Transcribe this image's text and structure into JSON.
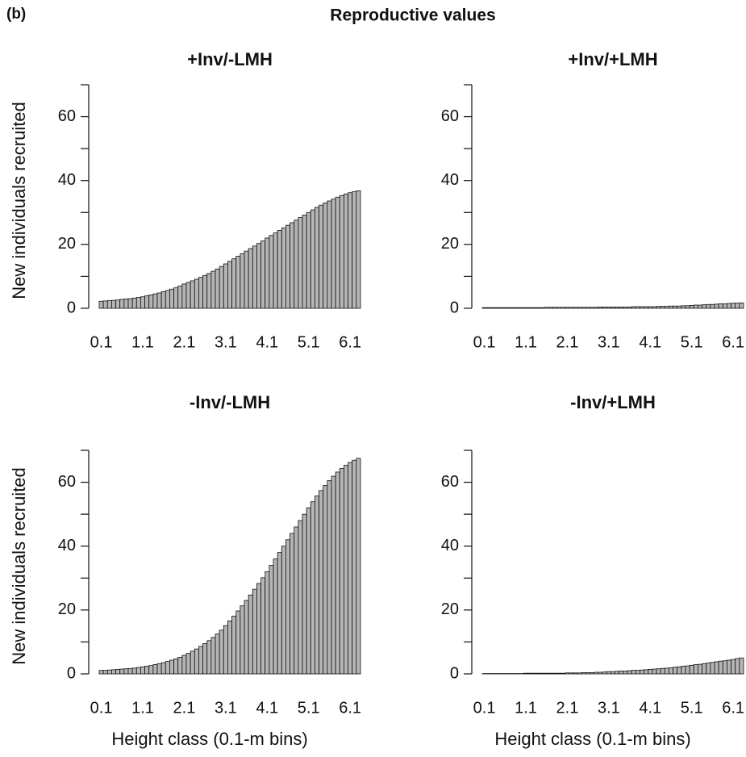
{
  "figure": {
    "label": "(b)",
    "title": "Reproductive values"
  },
  "chart_data": [
    {
      "type": "bar",
      "title": "+Inv/-LMH",
      "ylabel": "New individuals recruited",
      "color": "#b5b5b5",
      "categories": [
        "0.1",
        null,
        null,
        null,
        null,
        null,
        null,
        null,
        null,
        null,
        "1.1",
        null,
        null,
        null,
        null,
        null,
        null,
        null,
        null,
        null,
        "2.1",
        null,
        null,
        null,
        null,
        null,
        null,
        null,
        null,
        null,
        "3.1",
        null,
        null,
        null,
        null,
        null,
        null,
        null,
        null,
        null,
        "4.1",
        null,
        null,
        null,
        null,
        null,
        null,
        null,
        null,
        null,
        "5.1",
        null,
        null,
        null,
        null,
        null,
        null,
        null,
        null,
        null,
        "6.1",
        null,
        null
      ],
      "values": [
        2.2,
        2.3,
        2.4,
        2.5,
        2.6,
        2.8,
        2.9,
        3.0,
        3.2,
        3.4,
        3.6,
        3.9,
        4.2,
        4.5,
        4.8,
        5.2,
        5.6,
        6.0,
        6.4,
        7.0,
        7.6,
        8.1,
        8.6,
        9.1,
        9.7,
        10.3,
        10.9,
        11.6,
        12.3,
        13.1,
        13.9,
        14.7,
        15.5,
        16.3,
        17.1,
        17.9,
        18.7,
        19.5,
        20.3,
        21.1,
        22.0,
        22.8,
        23.6,
        24.4,
        25.2,
        26.0,
        26.8,
        27.6,
        28.4,
        29.2,
        30.0,
        30.8,
        31.6,
        32.3,
        33.0,
        33.6,
        34.2,
        34.8,
        35.3,
        35.8,
        36.2,
        36.5,
        36.8
      ],
      "ylim": [
        0,
        70
      ],
      "yticks": [
        0,
        20,
        40,
        60
      ],
      "yminorticks": [
        10,
        30,
        50,
        70
      ]
    },
    {
      "type": "bar",
      "title": "+Inv/+LMH",
      "color": "#b5b5b5",
      "categories": [
        "0.1",
        null,
        null,
        null,
        null,
        null,
        null,
        null,
        null,
        null,
        "1.1",
        null,
        null,
        null,
        null,
        null,
        null,
        null,
        null,
        null,
        "2.1",
        null,
        null,
        null,
        null,
        null,
        null,
        null,
        null,
        null,
        "3.1",
        null,
        null,
        null,
        null,
        null,
        null,
        null,
        null,
        null,
        "4.1",
        null,
        null,
        null,
        null,
        null,
        null,
        null,
        null,
        null,
        "5.1",
        null,
        null,
        null,
        null,
        null,
        null,
        null,
        null,
        null,
        "6.1",
        null,
        null
      ],
      "values": [
        0.2,
        0.2,
        0.2,
        0.2,
        0.2,
        0.2,
        0.2,
        0.2,
        0.2,
        0.2,
        0.2,
        0.2,
        0.2,
        0.2,
        0.2,
        0.3,
        0.3,
        0.3,
        0.3,
        0.3,
        0.3,
        0.3,
        0.3,
        0.3,
        0.3,
        0.3,
        0.3,
        0.3,
        0.4,
        0.4,
        0.4,
        0.4,
        0.4,
        0.4,
        0.4,
        0.4,
        0.5,
        0.5,
        0.5,
        0.5,
        0.5,
        0.5,
        0.6,
        0.6,
        0.6,
        0.7,
        0.7,
        0.7,
        0.8,
        0.8,
        0.9,
        1.0,
        1.0,
        1.1,
        1.2,
        1.2,
        1.3,
        1.4,
        1.4,
        1.5,
        1.6,
        1.6,
        1.7
      ],
      "ylim": [
        0,
        70
      ],
      "yticks": [
        0,
        20,
        40,
        60
      ],
      "yminorticks": [
        10,
        30,
        50,
        70
      ]
    },
    {
      "type": "bar",
      "title": "-Inv/-LMH",
      "ylabel": "New individuals recruited",
      "xlabel": "Height class (0.1-m bins)",
      "color": "#b5b5b5",
      "categories": [
        "0.1",
        null,
        null,
        null,
        null,
        null,
        null,
        null,
        null,
        null,
        "1.1",
        null,
        null,
        null,
        null,
        null,
        null,
        null,
        null,
        null,
        "2.1",
        null,
        null,
        null,
        null,
        null,
        null,
        null,
        null,
        null,
        "3.1",
        null,
        null,
        null,
        null,
        null,
        null,
        null,
        null,
        null,
        "4.1",
        null,
        null,
        null,
        null,
        null,
        null,
        null,
        null,
        null,
        "5.1",
        null,
        null,
        null,
        null,
        null,
        null,
        null,
        null,
        null,
        "6.1",
        null,
        null
      ],
      "values": [
        1.1,
        1.1,
        1.2,
        1.3,
        1.4,
        1.5,
        1.6,
        1.7,
        1.8,
        2.0,
        2.2,
        2.4,
        2.6,
        2.9,
        3.2,
        3.5,
        3.9,
        4.3,
        4.7,
        5.2,
        5.8,
        6.4,
        7.1,
        7.8,
        8.6,
        9.5,
        10.4,
        11.4,
        12.5,
        13.7,
        15.1,
        16.6,
        18.1,
        19.7,
        21.3,
        23.0,
        24.7,
        26.5,
        28.3,
        30.1,
        32.0,
        34.0,
        36.0,
        38.0,
        40.0,
        42.0,
        44.0,
        46.0,
        48.0,
        50.0,
        52.0,
        53.9,
        55.7,
        57.4,
        59.0,
        60.5,
        61.9,
        63.2,
        64.3,
        65.3,
        66.2,
        66.9,
        67.5
      ],
      "ylim": [
        0,
        70
      ],
      "yticks": [
        0,
        20,
        40,
        60
      ],
      "yminorticks": [
        10,
        30,
        50,
        70
      ]
    },
    {
      "type": "bar",
      "title": "-Inv/+LMH",
      "xlabel": "Height class (0.1-m bins)",
      "color": "#b5b5b5",
      "categories": [
        "0.1",
        null,
        null,
        null,
        null,
        null,
        null,
        null,
        null,
        null,
        "1.1",
        null,
        null,
        null,
        null,
        null,
        null,
        null,
        null,
        null,
        "2.1",
        null,
        null,
        null,
        null,
        null,
        null,
        null,
        null,
        null,
        "3.1",
        null,
        null,
        null,
        null,
        null,
        null,
        null,
        null,
        null,
        "4.1",
        null,
        null,
        null,
        null,
        null,
        null,
        null,
        null,
        null,
        "5.1",
        null,
        null,
        null,
        null,
        null,
        null,
        null,
        null,
        null,
        "6.1",
        null,
        null
      ],
      "values": [
        0.1,
        0.1,
        0.1,
        0.1,
        0.1,
        0.1,
        0.1,
        0.1,
        0.1,
        0.1,
        0.2,
        0.2,
        0.2,
        0.2,
        0.2,
        0.2,
        0.2,
        0.2,
        0.2,
        0.2,
        0.3,
        0.3,
        0.3,
        0.3,
        0.4,
        0.4,
        0.4,
        0.5,
        0.5,
        0.6,
        0.7,
        0.7,
        0.8,
        0.9,
        0.9,
        1.0,
        1.1,
        1.1,
        1.2,
        1.3,
        1.4,
        1.5,
        1.6,
        1.7,
        1.8,
        1.9,
        2.1,
        2.2,
        2.4,
        2.5,
        2.7,
        2.9,
        3.0,
        3.2,
        3.4,
        3.6,
        3.8,
        4.0,
        4.1,
        4.3,
        4.5,
        4.8,
        5.0
      ],
      "ylim": [
        0,
        70
      ],
      "yticks": [
        0,
        20,
        40,
        60
      ],
      "yminorticks": [
        10,
        30,
        50,
        70
      ]
    }
  ]
}
